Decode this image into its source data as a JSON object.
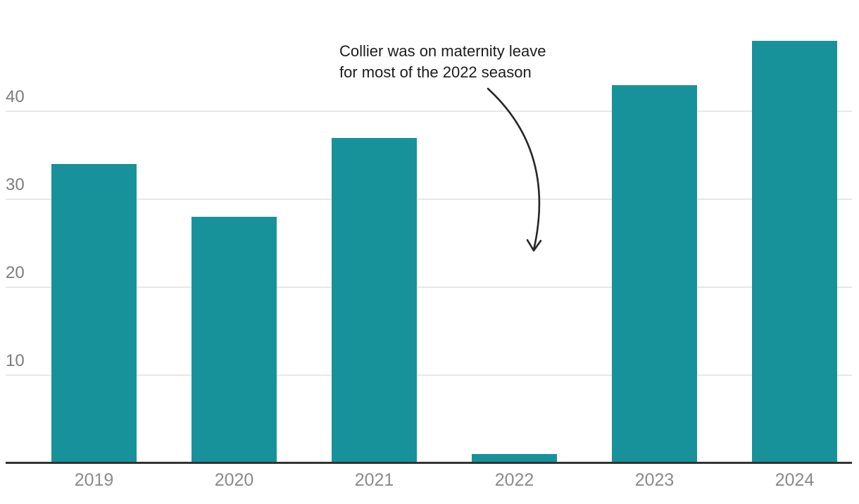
{
  "chart_data": {
    "type": "bar",
    "title": "",
    "categories": [
      "2019",
      "2020",
      "2021",
      "2022",
      "2023",
      "2024"
    ],
    "values": [
      34,
      28,
      37,
      1,
      43,
      48
    ],
    "ylim": [
      0,
      50
    ],
    "yticks": [
      10,
      20,
      30,
      40
    ],
    "xlabel": "",
    "ylabel": "",
    "grid": "horizontal-only",
    "legend": "none",
    "bar_color": "#18929A",
    "axis_line_color": "#333333",
    "gridline_color": "#e8e8e8",
    "tick_label_color": "#8a8a8a",
    "annotation": {
      "lines": [
        "Collier was on maternity leave",
        "for most of the 2022 season"
      ],
      "text_color": "#1c1c1c",
      "arrow_color": "#262626",
      "arrow_from": [
        693,
        126
      ],
      "arrow_control": [
        790,
        215
      ],
      "arrow_to": [
        758,
        355
      ]
    }
  }
}
